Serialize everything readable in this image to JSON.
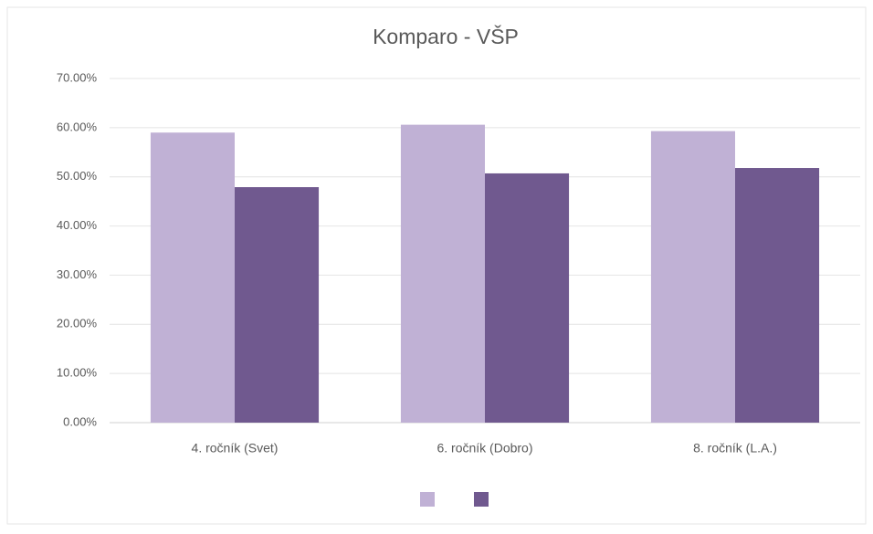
{
  "chart_data": {
    "type": "bar",
    "title": "Komparo - VŠP",
    "categories": [
      "4. ročník (Svet)",
      "6. ročník (Dobro)",
      "8. ročník (L.A.)"
    ],
    "series": [
      {
        "color": "#c0b1d5",
        "values": [
          59.0,
          60.6,
          59.3
        ]
      },
      {
        "color": "#70598f",
        "values": [
          47.9,
          50.7,
          51.8
        ]
      }
    ],
    "ylim": [
      0,
      70
    ],
    "yticks": [
      {
        "value": 0,
        "label": "0.00%"
      },
      {
        "value": 10,
        "label": "10.00%"
      },
      {
        "value": 20,
        "label": "20.00%"
      },
      {
        "value": 30,
        "label": "30.00%"
      },
      {
        "value": 40,
        "label": "40.00%"
      },
      {
        "value": 50,
        "label": "50.00%"
      },
      {
        "value": 60,
        "label": "60.00%"
      },
      {
        "value": 70,
        "label": "70.00%"
      }
    ],
    "grid": true
  }
}
